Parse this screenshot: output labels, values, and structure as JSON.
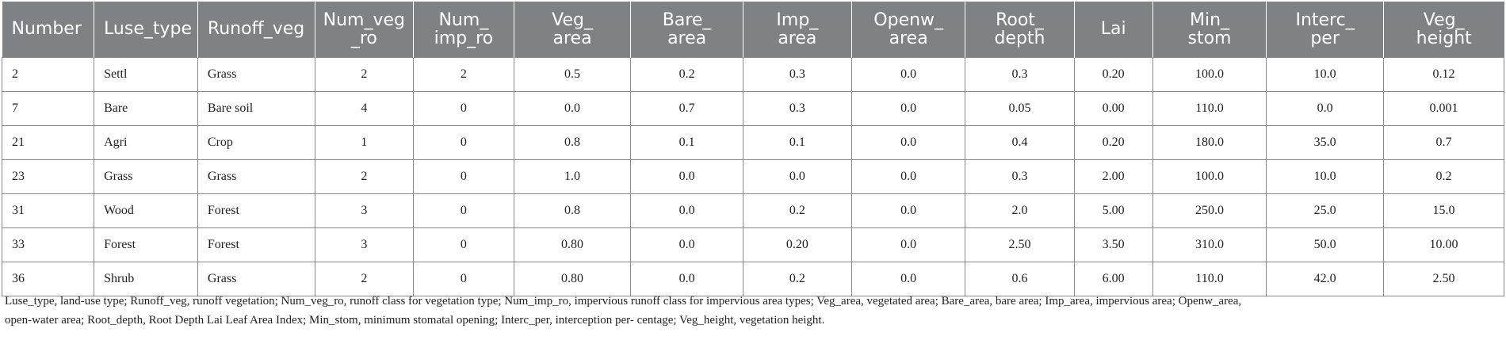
{
  "table": {
    "columns": [
      {
        "label": "Number",
        "align": "left"
      },
      {
        "label": "Luse_type",
        "align": "left"
      },
      {
        "label": "Runoff_veg",
        "align": "left"
      },
      {
        "label": "Num_veg\n_ro",
        "align": "center"
      },
      {
        "label": "Num_\nimp_ro",
        "align": "center"
      },
      {
        "label": "Veg_\narea",
        "align": "center"
      },
      {
        "label": "Bare_\narea",
        "align": "center"
      },
      {
        "label": "Imp_\narea",
        "align": "center"
      },
      {
        "label": "Openw_\narea",
        "align": "center"
      },
      {
        "label": "Root_\ndepth",
        "align": "center"
      },
      {
        "label": "Lai",
        "align": "center"
      },
      {
        "label": "Min_\nstom",
        "align": "center"
      },
      {
        "label": "Interc_\nper",
        "align": "center"
      },
      {
        "label": "Veg_\nheight",
        "align": "center"
      }
    ],
    "rows": [
      [
        "2",
        "Settl",
        "Grass",
        "2",
        "2",
        "0.5",
        "0.2",
        "0.3",
        "0.0",
        "0.3",
        "0.20",
        "100.0",
        "10.0",
        "0.12"
      ],
      [
        "7",
        "Bare",
        "Bare soil",
        "4",
        "0",
        "0.0",
        "0.7",
        "0.3",
        "0.0",
        "0.05",
        "0.00",
        "110.0",
        "0.0",
        "0.001"
      ],
      [
        "21",
        "Agri",
        "Crop",
        "1",
        "0",
        "0.8",
        "0.1",
        "0.1",
        "0.0",
        "0.4",
        "0.20",
        "180.0",
        "35.0",
        "0.7"
      ],
      [
        "23",
        "Grass",
        "Grass",
        "2",
        "0",
        "1.0",
        "0.0",
        "0.0",
        "0.0",
        "0.3",
        "2.00",
        "100.0",
        "10.0",
        "0.2"
      ],
      [
        "31",
        "Wood",
        "Forest",
        "3",
        "0",
        "0.8",
        "0.0",
        "0.2",
        "0.0",
        "2.0",
        "5.00",
        "250.0",
        "25.0",
        "15.0"
      ],
      [
        "33",
        "Forest",
        "Forest",
        "3",
        "0",
        "0.80",
        "0.0",
        "0.20",
        "0.0",
        "2.50",
        "3.50",
        "310.0",
        "50.0",
        "10.00"
      ],
      [
        "36",
        "Shrub",
        "Grass",
        "2",
        "0",
        "0.80",
        "0.0",
        "0.2",
        "0.0",
        "0.6",
        "6.00",
        "110.0",
        "42.0",
        "2.50"
      ]
    ]
  },
  "footnote": {
    "line1": "Luse_type, land-use type; Runoff_veg, runoff vegetation; Num_veg_ro, runoff class for vegetation type; Num_imp_ro, impervious runoff class for impervious area types; Veg_area, vegetated area; Bare_area, bare area; Imp_area, impervious area; Openw_area,",
    "line2": "open-water area; Root_depth, Root Depth Lai Leaf Area Index; Min_stom, minimum stomatal opening; Interc_per, interception per- centage; Veg_height, vegetation height."
  },
  "colors": {
    "header_bg": "#7e8284",
    "header_text": "#ffffff",
    "grid": "#8a8a8a"
  }
}
